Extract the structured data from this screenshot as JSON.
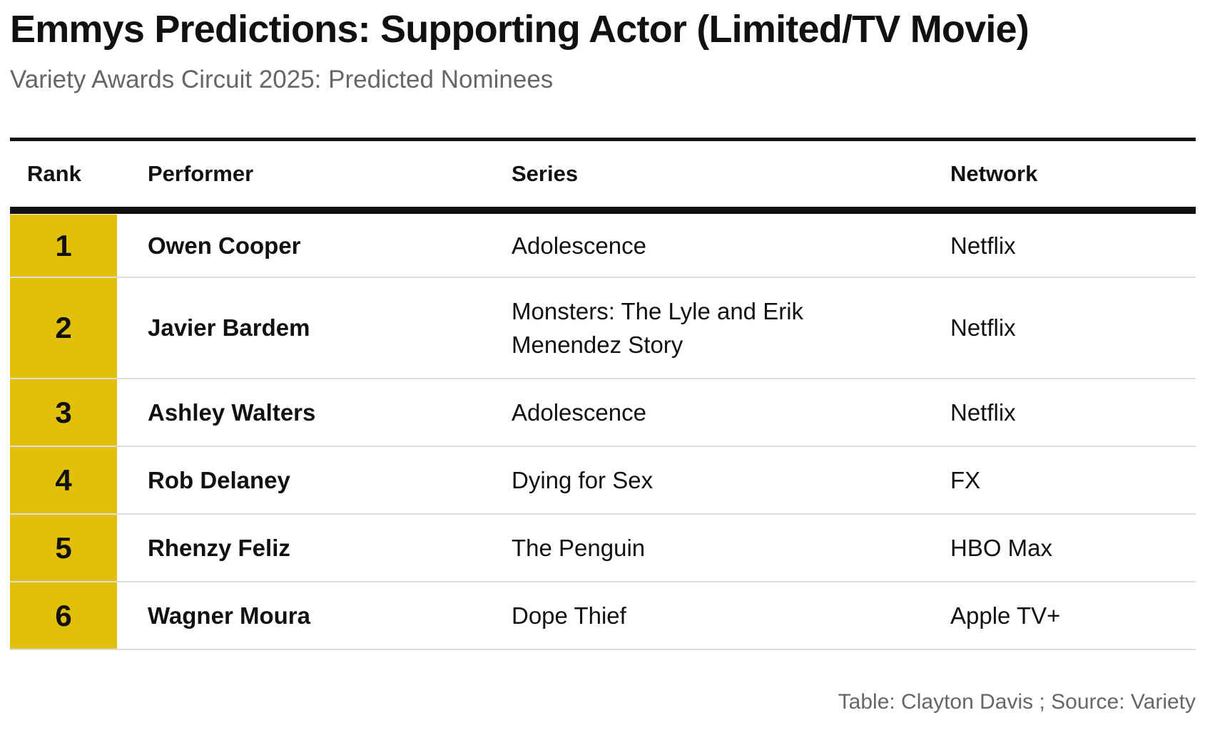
{
  "title": "Emmys Predictions: Supporting Actor (Limited/TV Movie)",
  "subtitle": "Variety Awards Circuit 2025: Predicted Nominees",
  "footer": "Table: Clayton Davis ; Source: Variety",
  "colors": {
    "rank_highlight": "#e2bf0b",
    "rule": "#111111",
    "row_divider": "#dddddd",
    "muted_text": "#666666"
  },
  "chart_data": {
    "type": "table",
    "title": "Emmys Predictions: Supporting Actor (Limited/TV Movie)",
    "subtitle": "Variety Awards Circuit 2025: Predicted Nominees",
    "columns": [
      "Rank",
      "Performer",
      "Series",
      "Network"
    ],
    "rows": [
      {
        "rank": "1",
        "performer": "Owen Cooper",
        "series": "Adolescence",
        "network": "Netflix"
      },
      {
        "rank": "2",
        "performer": "Javier Bardem",
        "series": "Monsters: The Lyle and Erik Menendez Story",
        "network": "Netflix"
      },
      {
        "rank": "3",
        "performer": "Ashley Walters",
        "series": "Adolescence",
        "network": "Netflix"
      },
      {
        "rank": "4",
        "performer": "Rob Delaney",
        "series": "Dying for Sex",
        "network": "FX"
      },
      {
        "rank": "5",
        "performer": "Rhenzy Feliz",
        "series": "The Penguin",
        "network": "HBO Max"
      },
      {
        "rank": "6",
        "performer": "Wagner Moura",
        "series": "Dope Thief",
        "network": "Apple TV+"
      }
    ],
    "footer": "Table: Clayton Davis ; Source: Variety"
  }
}
